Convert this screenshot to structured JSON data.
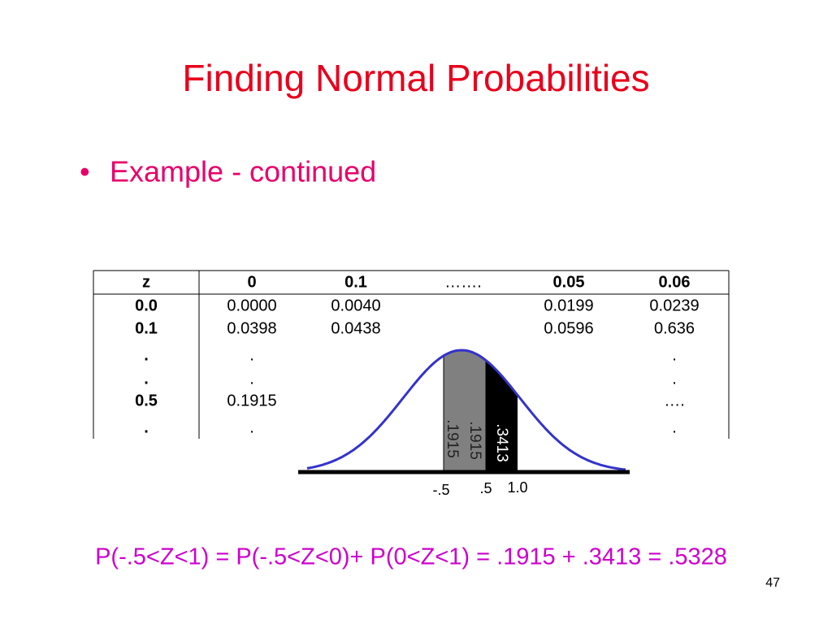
{
  "title": "Finding Normal Probabilities",
  "bullet": "Example - continued",
  "table": {
    "header": [
      "z",
      "0",
      "0.1",
      "…….",
      "0.05",
      "0.06"
    ],
    "rows": [
      [
        "0.0",
        "0.0000",
        "0.0040",
        null,
        "0.0199",
        "0.0239"
      ],
      [
        "0.1",
        "0.0398",
        "0.0438",
        null,
        "0.0596",
        "0.636"
      ],
      [
        ".",
        ".",
        null,
        null,
        null,
        "."
      ],
      [
        ".",
        ".",
        null,
        null,
        null,
        "."
      ],
      [
        "0.5",
        "0.1915",
        null,
        null,
        null,
        "…."
      ],
      [
        ".",
        ".",
        null,
        null,
        null,
        "."
      ]
    ]
  },
  "diagram": {
    "left_labels": [
      ".1915",
      ".1915"
    ],
    "right_label": ".3413",
    "axis_labels": [
      "-.5",
      ".5",
      "1.0"
    ]
  },
  "formula": "P(-.5<Z<1) = P(-.5<Z<0)+ P(0<Z<1) = .1915 + .3413 = .5328",
  "page_number": "47"
}
